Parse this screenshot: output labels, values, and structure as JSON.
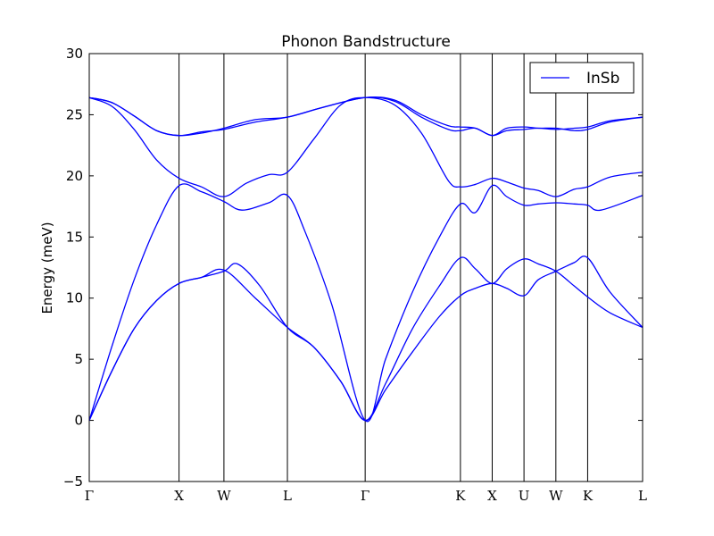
{
  "chart_data": {
    "type": "line",
    "title": "Phonon Bandstructure",
    "xlabel": "",
    "ylabel": "Energy (meV)",
    "ylim": [
      -5,
      30
    ],
    "yticks": [
      -5,
      0,
      5,
      10,
      15,
      20,
      25,
      30
    ],
    "xticks": [
      {
        "label": "Γ",
        "x": 0.0
      },
      {
        "label": "X",
        "x": 1.0
      },
      {
        "label": "W",
        "x": 1.5
      },
      {
        "label": "L",
        "x": 2.207
      },
      {
        "label": "Γ",
        "x": 3.073
      },
      {
        "label": "K",
        "x": 4.134
      },
      {
        "label": "X",
        "x": 4.488
      },
      {
        "label": "U",
        "x": 4.842
      },
      {
        "label": "W",
        "x": 5.197
      },
      {
        "label": "K",
        "x": 5.551
      },
      {
        "label": "L",
        "x": 6.163
      }
    ],
    "grid": false,
    "legend": {
      "position": "top-right",
      "entries": [
        {
          "name": "InSb",
          "color": "#0000ff"
        }
      ]
    },
    "line_color": "#0000ff",
    "series": [
      {
        "name": "InSb",
        "bands": [
          [
            [
              0,
              0
            ],
            [
              0.25,
              4
            ],
            [
              0.5,
              7.5
            ],
            [
              0.75,
              9.8
            ],
            [
              1,
              11.2
            ],
            [
              1.25,
              11.7
            ],
            [
              1.5,
              12.3
            ],
            [
              1.85,
              10
            ],
            [
              2.207,
              7.6
            ],
            [
              2.5,
              6
            ],
            [
              2.8,
              3.2
            ],
            [
              3.073,
              0
            ],
            [
              3.3,
              2.5
            ],
            [
              3.6,
              5.6
            ],
            [
              3.9,
              8.5
            ],
            [
              4.134,
              10.2
            ],
            [
              4.3,
              10.8
            ],
            [
              4.488,
              11.2
            ],
            [
              4.65,
              10.8
            ],
            [
              4.842,
              10.2
            ],
            [
              5.0,
              11.5
            ],
            [
              5.197,
              12.2
            ],
            [
              5.4,
              12.9
            ],
            [
              5.551,
              13.3
            ],
            [
              5.8,
              10.5
            ],
            [
              6.163,
              7.6
            ]
          ],
          [
            [
              0,
              0
            ],
            [
              0.25,
              4
            ],
            [
              0.5,
              7.5
            ],
            [
              0.75,
              9.8
            ],
            [
              1,
              11.2
            ],
            [
              1.25,
              11.7
            ],
            [
              1.5,
              12.2
            ],
            [
              1.65,
              12.8
            ],
            [
              1.9,
              11
            ],
            [
              2.207,
              7.6
            ],
            [
              2.5,
              6
            ],
            [
              2.8,
              3.2
            ],
            [
              3.073,
              0
            ],
            [
              3.3,
              3
            ],
            [
              3.6,
              7.5
            ],
            [
              3.9,
              11
            ],
            [
              4.134,
              13.3
            ],
            [
              4.3,
              12.4
            ],
            [
              4.488,
              11.2
            ],
            [
              4.65,
              12.4
            ],
            [
              4.842,
              13.2
            ],
            [
              5.0,
              12.8
            ],
            [
              5.197,
              12.2
            ],
            [
              5.4,
              11
            ],
            [
              5.551,
              10.1
            ],
            [
              5.8,
              8.8
            ],
            [
              6.163,
              7.6
            ]
          ],
          [
            [
              0,
              0
            ],
            [
              0.25,
              6
            ],
            [
              0.5,
              11.5
            ],
            [
              0.75,
              16
            ],
            [
              1,
              19.2
            ],
            [
              1.25,
              18.7
            ],
            [
              1.5,
              17.9
            ],
            [
              1.7,
              17.2
            ],
            [
              2.0,
              17.8
            ],
            [
              2.207,
              18.4
            ],
            [
              2.4,
              15.5
            ],
            [
              2.7,
              9.5
            ],
            [
              3.073,
              0
            ],
            [
              3.3,
              5
            ],
            [
              3.6,
              10.5
            ],
            [
              3.9,
              15
            ],
            [
              4.134,
              17.7
            ],
            [
              4.3,
              17
            ],
            [
              4.488,
              19.2
            ],
            [
              4.65,
              18.3
            ],
            [
              4.842,
              17.6
            ],
            [
              5.0,
              17.7
            ],
            [
              5.197,
              17.8
            ],
            [
              5.4,
              17.7
            ],
            [
              5.551,
              17.6
            ],
            [
              5.7,
              17.2
            ],
            [
              6.163,
              18.4
            ]
          ],
          [
            [
              0,
              26.4
            ],
            [
              0.25,
              25.7
            ],
            [
              0.5,
              23.8
            ],
            [
              0.75,
              21.3
            ],
            [
              1,
              19.8
            ],
            [
              1.25,
              19.1
            ],
            [
              1.5,
              18.3
            ],
            [
              1.75,
              19.4
            ],
            [
              2.0,
              20.1
            ],
            [
              2.207,
              20.3
            ],
            [
              2.5,
              23
            ],
            [
              2.8,
              25.8
            ],
            [
              3.073,
              26.4
            ],
            [
              3.4,
              25.8
            ],
            [
              3.7,
              23.5
            ],
            [
              4.0,
              19.6
            ],
            [
              4.134,
              19.1
            ],
            [
              4.3,
              19.3
            ],
            [
              4.488,
              19.8
            ],
            [
              4.65,
              19.5
            ],
            [
              4.842,
              19
            ],
            [
              5.0,
              18.8
            ],
            [
              5.197,
              18.3
            ],
            [
              5.4,
              18.9
            ],
            [
              5.551,
              19.1
            ],
            [
              5.8,
              19.9
            ],
            [
              6.163,
              20.3
            ]
          ],
          [
            [
              0,
              26.4
            ],
            [
              0.25,
              26
            ],
            [
              0.5,
              24.9
            ],
            [
              0.75,
              23.7
            ],
            [
              1,
              23.3
            ],
            [
              1.25,
              23.6
            ],
            [
              1.5,
              23.8
            ],
            [
              1.85,
              24.4
            ],
            [
              2.207,
              24.8
            ],
            [
              2.6,
              25.6
            ],
            [
              3.073,
              26.4
            ],
            [
              3.4,
              26.2
            ],
            [
              3.7,
              25
            ],
            [
              4.0,
              24.1
            ],
            [
              4.134,
              24
            ],
            [
              4.3,
              23.9
            ],
            [
              4.488,
              23.3
            ],
            [
              4.65,
              23.7
            ],
            [
              4.842,
              23.8
            ],
            [
              5.0,
              23.9
            ],
            [
              5.197,
              23.8
            ],
            [
              5.4,
              23.9
            ],
            [
              5.551,
              24
            ],
            [
              5.8,
              24.5
            ],
            [
              6.163,
              24.8
            ]
          ],
          [
            [
              0,
              26.4
            ],
            [
              0.25,
              26
            ],
            [
              0.5,
              24.9
            ],
            [
              0.75,
              23.7
            ],
            [
              1,
              23.3
            ],
            [
              1.25,
              23.5
            ],
            [
              1.5,
              23.9
            ],
            [
              1.85,
              24.6
            ],
            [
              2.207,
              24.8
            ],
            [
              2.6,
              25.6
            ],
            [
              3.073,
              26.4
            ],
            [
              3.4,
              26.1
            ],
            [
              3.7,
              24.8
            ],
            [
              4.0,
              23.8
            ],
            [
              4.134,
              23.7
            ],
            [
              4.3,
              23.9
            ],
            [
              4.488,
              23.3
            ],
            [
              4.65,
              23.9
            ],
            [
              4.842,
              24
            ],
            [
              5.0,
              23.9
            ],
            [
              5.197,
              23.9
            ],
            [
              5.4,
              23.7
            ],
            [
              5.551,
              23.8
            ],
            [
              5.8,
              24.4
            ],
            [
              6.163,
              24.8
            ]
          ]
        ]
      }
    ]
  }
}
